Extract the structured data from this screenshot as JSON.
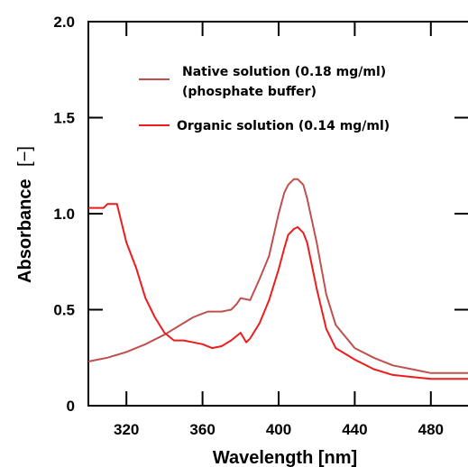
{
  "chart_data": {
    "type": "line",
    "xlabel": "Wavelength [nm]",
    "ylabel": "Absorbance",
    "ylabel_unit": "[−]",
    "xlim": [
      300,
      500
    ],
    "ylim": [
      0,
      2.0
    ],
    "x_ticks": [
      320,
      360,
      400,
      440,
      480
    ],
    "x_tick_labels": [
      "320",
      "360",
      "400",
      "440",
      "480"
    ],
    "y_ticks": [
      0,
      0.5,
      1.0,
      1.5,
      2.0
    ],
    "y_tick_labels": [
      "0",
      "0.5",
      "1.0",
      "1.5",
      "2.0"
    ],
    "grid": false,
    "legend_position": "top-center",
    "series": [
      {
        "name": "Native solution (0.18 mg/ml)",
        "name_line2": "(phosphate buffer)",
        "color": "#c0504d",
        "x": [
          300,
          305,
          310,
          320,
          330,
          340,
          350,
          355,
          360,
          363,
          365,
          370,
          375,
          378,
          380,
          385,
          390,
          395,
          400,
          403,
          405,
          408,
          410,
          413,
          415,
          420,
          425,
          430,
          440,
          450,
          460,
          470,
          480,
          490,
          500
        ],
        "y": [
          0.23,
          0.24,
          0.25,
          0.28,
          0.32,
          0.37,
          0.43,
          0.46,
          0.48,
          0.49,
          0.49,
          0.49,
          0.5,
          0.53,
          0.56,
          0.55,
          0.66,
          0.78,
          1.0,
          1.11,
          1.15,
          1.18,
          1.18,
          1.15,
          1.08,
          0.85,
          0.58,
          0.42,
          0.3,
          0.25,
          0.21,
          0.19,
          0.17,
          0.17,
          0.17
        ]
      },
      {
        "name": "Organic solution (0.14 mg/ml)",
        "color": "#ee1c1c",
        "x": [
          300,
          305,
          308,
          310,
          315,
          320,
          325,
          330,
          335,
          340,
          345,
          350,
          355,
          360,
          365,
          370,
          375,
          380,
          383,
          385,
          390,
          395,
          400,
          403,
          405,
          408,
          410,
          413,
          415,
          420,
          425,
          430,
          435,
          440,
          450,
          460,
          470,
          480,
          490,
          500
        ],
        "y": [
          1.03,
          1.03,
          1.03,
          1.05,
          1.05,
          0.85,
          0.72,
          0.56,
          0.46,
          0.38,
          0.34,
          0.34,
          0.33,
          0.32,
          0.3,
          0.31,
          0.34,
          0.38,
          0.33,
          0.35,
          0.43,
          0.55,
          0.71,
          0.82,
          0.89,
          0.92,
          0.93,
          0.9,
          0.85,
          0.61,
          0.4,
          0.3,
          0.27,
          0.24,
          0.19,
          0.16,
          0.15,
          0.14,
          0.14,
          0.14
        ]
      }
    ]
  }
}
